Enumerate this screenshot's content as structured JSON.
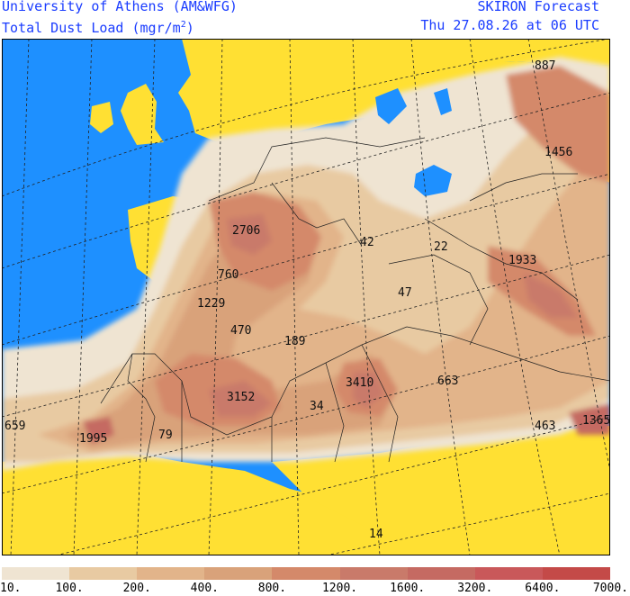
{
  "header": {
    "institution": "University of Athens (AM&WFG)",
    "product_prefix": "Total Dust Load (mgr/m",
    "product_exponent": "2",
    "product_suffix": ")",
    "model": "SKIRON Forecast",
    "valid_time": "Thu 27.08.26 at 06 UTC"
  },
  "map_labels": [
    {
      "id": "l1",
      "text": "887"
    },
    {
      "id": "l2",
      "text": "1456"
    },
    {
      "id": "l3",
      "text": "2706"
    },
    {
      "id": "l4",
      "text": "42"
    },
    {
      "id": "l5",
      "text": "22"
    },
    {
      "id": "l6",
      "text": "1933"
    },
    {
      "id": "l7",
      "text": "760"
    },
    {
      "id": "l8",
      "text": "47"
    },
    {
      "id": "l9",
      "text": "1229"
    },
    {
      "id": "l10",
      "text": "470"
    },
    {
      "id": "l11",
      "text": "189"
    },
    {
      "id": "l12",
      "text": "3152"
    },
    {
      "id": "l13",
      "text": "3410"
    },
    {
      "id": "l14",
      "text": "663"
    },
    {
      "id": "l15",
      "text": "34"
    },
    {
      "id": "l16",
      "text": "659"
    },
    {
      "id": "l17",
      "text": "1995"
    },
    {
      "id": "l18",
      "text": "79"
    },
    {
      "id": "l19",
      "text": "463"
    },
    {
      "id": "l20",
      "text": "1365"
    },
    {
      "id": "l21",
      "text": "14"
    }
  ],
  "colors": {
    "sea": "#1e90ff",
    "below_threshold": "#ffe033",
    "class_colors": [
      "#efe4d2",
      "#e8caa2",
      "#e2b48a",
      "#d9a27a",
      "#d4896a",
      "#c97a6a",
      "#c56a62",
      "#c9585a",
      "#c44a48"
    ]
  },
  "legend": {
    "ticks": [
      "10.",
      "100.",
      "200.",
      "400.",
      "800.",
      "1200.",
      "1600.",
      "3200.",
      "6400.",
      "7000."
    ]
  }
}
